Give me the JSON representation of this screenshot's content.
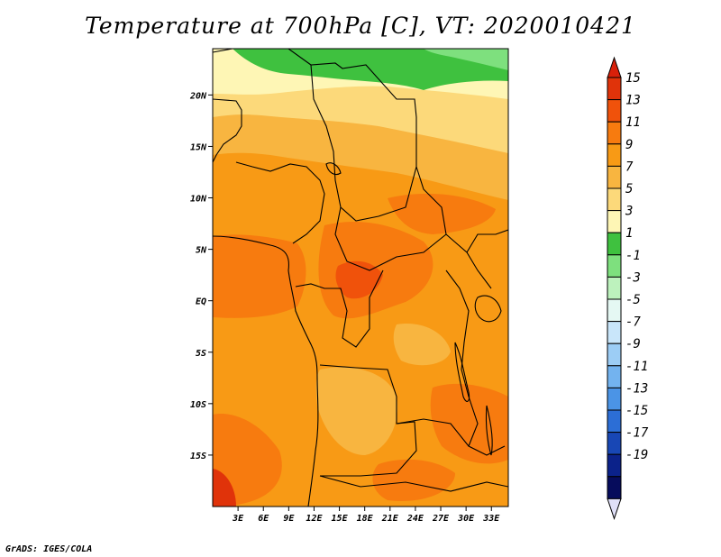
{
  "title": "Temperature at 700hPa [C], VT: 2020010421",
  "credit": "GrADS: IGES/COLA",
  "map": {
    "lat_ticks": [
      {
        "label": "20N",
        "lat": 20
      },
      {
        "label": "15N",
        "lat": 15
      },
      {
        "label": "10N",
        "lat": 10
      },
      {
        "label": "5N",
        "lat": 5
      },
      {
        "label": "EQ",
        "lat": 0
      },
      {
        "label": "5S",
        "lat": -5
      },
      {
        "label": "10S",
        "lat": -10
      },
      {
        "label": "15S",
        "lat": -15
      }
    ],
    "lon_ticks": [
      {
        "label": "3E",
        "lon": 3
      },
      {
        "label": "6E",
        "lon": 6
      },
      {
        "label": "9E",
        "lon": 9
      },
      {
        "label": "12E",
        "lon": 12
      },
      {
        "label": "15E",
        "lon": 15
      },
      {
        "label": "18E",
        "lon": 18
      },
      {
        "label": "21E",
        "lon": 21
      },
      {
        "label": "24E",
        "lon": 24
      },
      {
        "label": "27E",
        "lon": 27
      },
      {
        "label": "30E",
        "lon": 30
      },
      {
        "label": "33E",
        "lon": 33
      }
    ],
    "lon_range": [
      0,
      35
    ],
    "lat_range": [
      -20,
      24.5
    ]
  },
  "colorbar": {
    "labels": [
      "15",
      "13",
      "11",
      "9",
      "7",
      "5",
      "3",
      "1",
      "-1",
      "-3",
      "-5",
      "-7",
      "-9",
      "-11",
      "-13",
      "-15",
      "-17",
      "-19"
    ],
    "colors": [
      "#e0330a",
      "#f0520b",
      "#f77b0f",
      "#f89a15",
      "#f8b540",
      "#fcd97a",
      "#fef6b5",
      "#3fc13f",
      "#7ee07e",
      "#bdf2bd",
      "#e5f8f3",
      "#c9e6fa",
      "#9ccdf5",
      "#73b3ef",
      "#4b94e6",
      "#2c6ed6",
      "#1847b5",
      "#0b228a",
      "#060c5c"
    ],
    "top_color": "#d8200a",
    "bottom_color": "#e0e0f8"
  }
}
